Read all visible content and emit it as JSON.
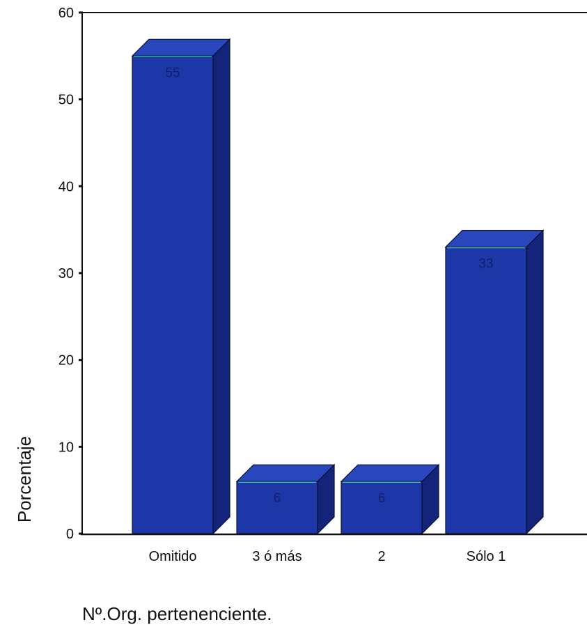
{
  "chart_data": {
    "type": "bar",
    "categories": [
      "Omitido",
      "3 ó más",
      "2",
      "Sólo 1"
    ],
    "values": [
      55,
      6,
      6,
      33
    ],
    "data_labels": [
      "55",
      "6",
      "6",
      "33"
    ],
    "ylabel": "Porcentaje",
    "xlabel": "Nº.Org. pertenenciente.",
    "ylim": [
      0,
      60
    ],
    "yticks": [
      0,
      10,
      20,
      30,
      40,
      50,
      60
    ],
    "grid": false,
    "legend": "none",
    "style": "3d-bar"
  },
  "colors": {
    "bar_front": "#1e37a8",
    "bar_top": "#2a46bd",
    "bar_side": "#13247a",
    "bar_edge": "#0a1030",
    "bar_top_highlight": "#2fb9a8",
    "axis": "#111111"
  }
}
